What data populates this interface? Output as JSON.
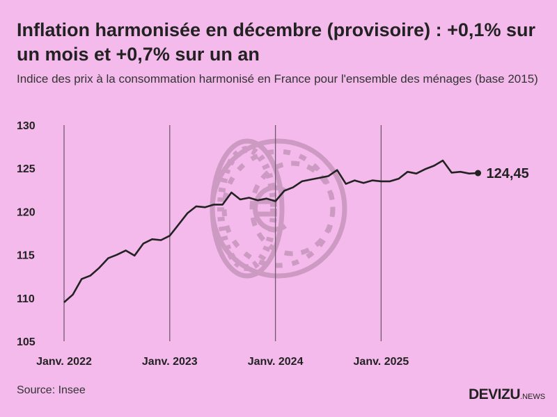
{
  "title": "Inflation harmonisée en décembre (provisoire) : +0,1% sur un mois et +0,7% sur un an",
  "subtitle": "Indice des prix à la consommation harmonisé en France pour l'ensemble des ménages (base 2015)",
  "source": "Source: Insee",
  "logo": {
    "main": "DEVIZU",
    "suffix": ".NEWS"
  },
  "colors": {
    "background": "#f4baeb",
    "line": "#222222",
    "gridline": "#6e5a6c",
    "watermark": "#cc9ac3"
  },
  "watermark_icon": "euro-coin-icon",
  "chart_data": {
    "type": "line",
    "title": "",
    "xlabel": "",
    "ylabel": "",
    "ylim": [
      105,
      130
    ],
    "yticks": [
      "130",
      "125",
      "120",
      "115",
      "110",
      "105"
    ],
    "xticks": [
      {
        "month": "2022-01",
        "label": "Janv. 2022"
      },
      {
        "month": "2023-01",
        "label": "Janv. 2023"
      },
      {
        "month": "2024-01",
        "label": "Janv. 2024"
      },
      {
        "month": "2025-01",
        "label": "Janv. 2025"
      }
    ],
    "grid": "vertical lines at January",
    "x_start": "2022-01",
    "x_end": "2025-12",
    "values": [
      109.5,
      110.4,
      112.2,
      112.6,
      113.5,
      114.6,
      115.0,
      115.5,
      114.9,
      116.3,
      116.8,
      116.7,
      117.2,
      118.5,
      119.8,
      120.6,
      120.5,
      120.8,
      120.8,
      122.2,
      121.4,
      121.6,
      121.3,
      121.5,
      121.2,
      122.4,
      122.8,
      123.5,
      123.7,
      123.9,
      124.1,
      124.8,
      123.2,
      123.6,
      123.3,
      123.6,
      123.5,
      123.5,
      123.8,
      124.6,
      124.4,
      124.9,
      125.3,
      125.9,
      124.5,
      124.6,
      124.4,
      124.45
    ],
    "last_value_label": "124,45"
  }
}
